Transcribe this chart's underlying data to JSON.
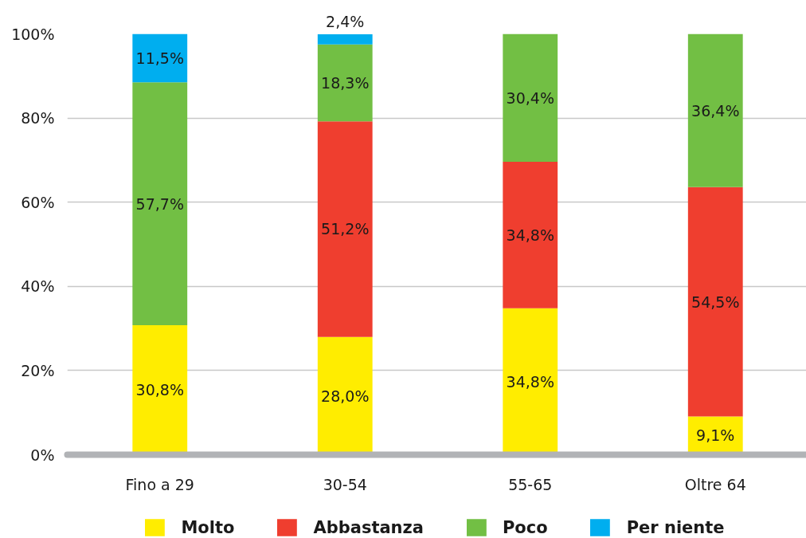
{
  "chart_data": {
    "type": "bar",
    "stacked": true,
    "categories": [
      "Fino a 29",
      "30-54",
      "55-65",
      "Oltre 64"
    ],
    "series": [
      {
        "name": "Molto",
        "color": "#ffed00",
        "values": [
          30.8,
          28.0,
          34.8,
          9.1
        ],
        "value_labels": [
          "30,8%",
          "28,0%",
          "34,8%",
          "9,1%"
        ]
      },
      {
        "name": "Abbastanza",
        "color": "#ef3e2f",
        "values": [
          null,
          51.2,
          34.8,
          54.5
        ],
        "value_labels": [
          null,
          "51,2%",
          "34,8%",
          "54,5%"
        ]
      },
      {
        "name": "Poco",
        "color": "#72bf44",
        "values": [
          57.7,
          18.3,
          30.4,
          36.4
        ],
        "value_labels": [
          "57,7%",
          "18,3%",
          "30,4%",
          "36,4%"
        ]
      },
      {
        "name": "Per niente",
        "color": "#00aeef",
        "values": [
          11.5,
          2.4,
          null,
          null
        ],
        "value_labels": [
          "11,5%",
          "2,4%",
          null,
          null
        ]
      }
    ],
    "ylim": [
      0,
      100
    ],
    "yticks": [
      {
        "value": 0,
        "label": "0%"
      },
      {
        "value": 20,
        "label": "20%"
      },
      {
        "value": 40,
        "label": "40%"
      },
      {
        "value": 60,
        "label": "60%"
      },
      {
        "value": 80,
        "label": "80%"
      },
      {
        "value": 100,
        "label": "100%"
      }
    ],
    "grid": "y",
    "legend": "bottom"
  }
}
